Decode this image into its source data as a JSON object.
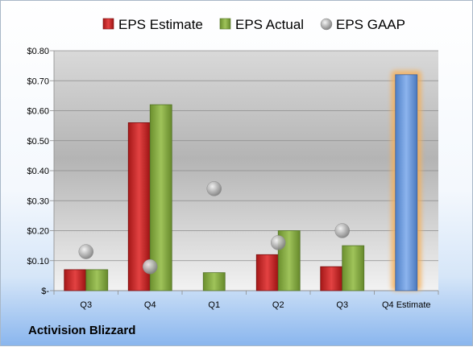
{
  "company": "Activision Blizzard",
  "chart_data": {
    "type": "bar",
    "categories": [
      "Q3",
      "Q4",
      "Q1",
      "Q2",
      "Q3",
      "Q4 Estimate"
    ],
    "series": [
      {
        "name": "EPS Estimate",
        "kind": "bar",
        "color": "#d42a2a",
        "values": [
          0.07,
          0.56,
          null,
          0.12,
          0.08,
          null
        ]
      },
      {
        "name": "EPS Actual",
        "kind": "bar",
        "color": "#8cb347",
        "values": [
          0.07,
          0.62,
          0.06,
          0.2,
          0.15,
          null
        ]
      },
      {
        "name": "EPS GAAP",
        "kind": "scatter",
        "color": "#a0a0a0",
        "values": [
          0.13,
          0.08,
          0.34,
          0.16,
          0.2,
          null
        ]
      },
      {
        "name": "",
        "kind": "bar",
        "color": "#6a9ae0",
        "highlight": "#f5b05a",
        "values": [
          null,
          null,
          null,
          null,
          null,
          0.72
        ]
      }
    ],
    "yticks": [
      "$-",
      "$0.10",
      "$0.20",
      "$0.30",
      "$0.40",
      "$0.50",
      "$0.60",
      "$0.70",
      "$0.80"
    ],
    "ylim": [
      0,
      0.8
    ],
    "grid": true,
    "legend": "top"
  }
}
